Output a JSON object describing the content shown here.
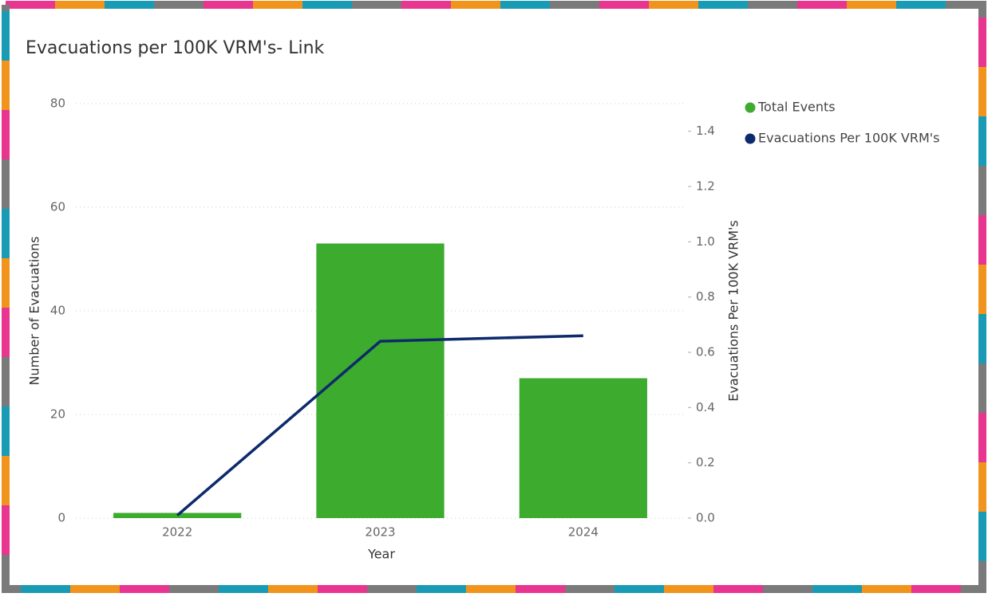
{
  "chart_data": {
    "type": "combo",
    "title": "Evacuations per 100K VRM's- Link",
    "x_label": "Year",
    "y_label": "Number of Evacuations",
    "y2_label": "Evacuations Per 100K VRM's",
    "categories": [
      "2022",
      "2023",
      "2024"
    ],
    "series": [
      {
        "name": "Total Events",
        "type": "bar",
        "color": "#3dab2e",
        "values": [
          1,
          53,
          27
        ]
      },
      {
        "name": "Evacuations Per 100K VRM's",
        "type": "line",
        "axis": "y2",
        "color": "#0d2a6b",
        "values": [
          0.01,
          0.64,
          0.66
        ]
      }
    ],
    "ylim": [
      0,
      80
    ],
    "yticks": [
      0,
      20,
      40,
      60,
      80
    ],
    "y2lim": [
      0,
      1.5
    ],
    "y2ticks": [
      {
        "value": 0,
        "label": "0.0"
      },
      {
        "value": 0.2,
        "label": "0.2"
      },
      {
        "value": 0.4,
        "label": "0.4"
      },
      {
        "value": 0.6,
        "label": "0.6"
      },
      {
        "value": 0.8,
        "label": "0.8"
      },
      {
        "value": 1,
        "label": "1.0"
      },
      {
        "value": 1.2,
        "label": "1.2"
      },
      {
        "value": 1.4,
        "label": "1.4"
      }
    ],
    "grid": true,
    "legend": "top-right"
  }
}
